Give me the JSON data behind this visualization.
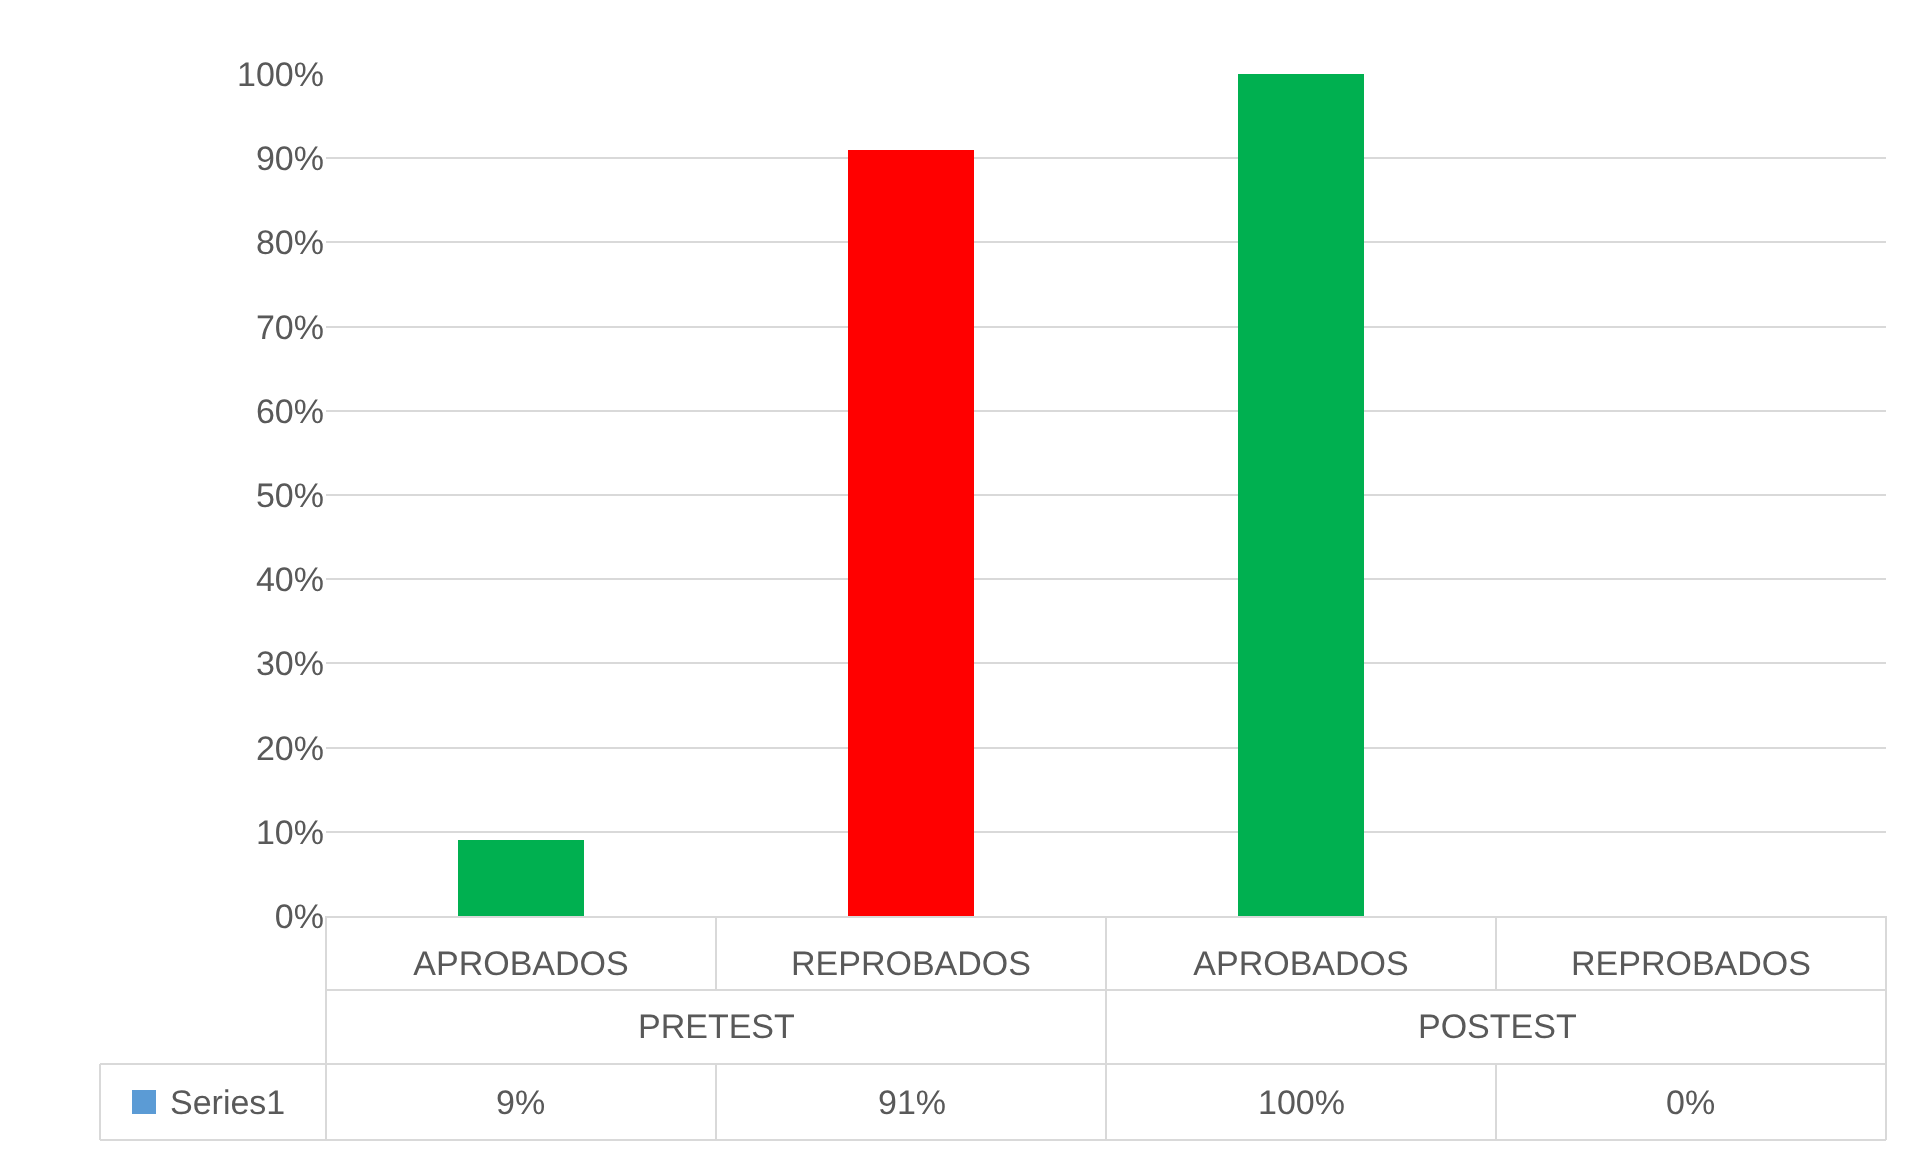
{
  "chart_data": {
    "type": "bar",
    "categories": [
      "APROBADOS",
      "REPROBADOS",
      "APROBADOS",
      "REPROBADOS"
    ],
    "annotations": [
      "PRETEST",
      "POSTEST"
    ],
    "series": [
      {
        "name": "Series1",
        "color": "#5b9bd5",
        "colors": [
          "#00b050",
          "#ff0000",
          "#00b050",
          "#ff0000"
        ],
        "values": [
          9,
          91,
          100,
          0
        ],
        "value_labels": [
          "9%",
          "91%",
          "100%",
          "0%"
        ]
      }
    ],
    "ylim": [
      0,
      100
    ],
    "yticks": [
      {
        "value": 0,
        "label": "0%"
      },
      {
        "value": 10,
        "label": "10%"
      },
      {
        "value": 20,
        "label": "20%"
      },
      {
        "value": 30,
        "label": "30%"
      },
      {
        "value": 40,
        "label": "40%"
      },
      {
        "value": 50,
        "label": "50%"
      },
      {
        "value": 60,
        "label": "60%"
      },
      {
        "value": 70,
        "label": "70%"
      },
      {
        "value": 80,
        "label": "80%"
      },
      {
        "value": 90,
        "label": "90%"
      },
      {
        "value": 100,
        "label": "100%"
      }
    ],
    "grid": "y"
  }
}
